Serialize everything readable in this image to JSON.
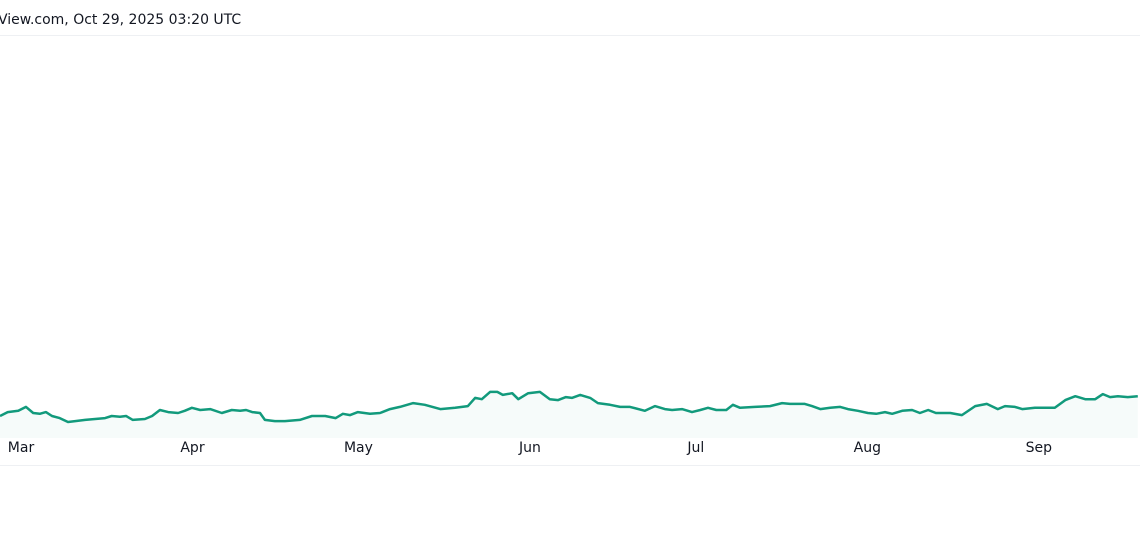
{
  "chart_data": {
    "type": "line",
    "title": "View.com, Oct 29, 2025 03:20 UTC",
    "x": [
      56.2,
      57.6,
      59.5,
      60.9,
      62.2,
      63.4,
      64.5,
      65.6,
      67.0,
      68.5,
      69.8,
      71.6,
      73.4,
      75.2,
      76.4,
      77.9,
      79.0,
      80.2,
      82.4,
      83.7,
      85.1,
      86.6,
      88.4,
      89.6,
      90.9,
      92.4,
      94.2,
      96.3,
      98.1,
      99.6,
      100.7,
      101.8,
      103.2,
      104.1,
      105.9,
      107.7,
      110.4,
      112.6,
      115.0,
      116.9,
      118.2,
      119.5,
      120.9,
      123.1,
      124.9,
      126.7,
      128.5,
      130.9,
      133.0,
      135.8,
      138.5,
      140.8,
      142.1,
      143.3,
      144.8,
      146.1,
      147.1,
      148.8,
      149.9,
      151.7,
      153.8,
      155.6,
      157.1,
      158.5,
      159.6,
      161.1,
      162.9,
      164.3,
      166.5,
      168.3,
      170.1,
      172.8,
      174.6,
      176.4,
      177.7,
      179.5,
      181.3,
      182.8,
      184.2,
      185.7,
      187.5,
      188.7,
      190.0,
      192.7,
      195.4,
      197.6,
      199.0,
      201.7,
      203.0,
      204.5,
      206.3,
      208.1,
      209.5,
      211.3,
      213.1,
      214.6,
      216.2,
      217.5,
      219.3,
      221.1,
      222.5,
      224.0,
      225.4,
      228.0,
      230.1,
      232.5,
      234.6,
      236.6,
      237.9,
      239.7,
      241.0,
      243.3,
      245.1,
      246.9,
      248.8,
      250.6,
      252.4,
      254.2,
      255.6,
      256.9,
      258.3,
      260.1,
      261.9
    ],
    "series": [
      {
        "color": "#129a7c",
        "values": [
          11.4,
          12.3,
          12.6,
          13.5,
          12.1,
          11.9,
          12.3,
          11.4,
          10.9,
          10.0,
          10.2,
          10.5,
          10.7,
          10.9,
          11.4,
          11.2,
          11.4,
          10.5,
          10.7,
          11.4,
          12.8,
          12.3,
          12.1,
          12.6,
          13.3,
          12.8,
          13.0,
          12.1,
          12.8,
          12.6,
          12.8,
          12.3,
          12.1,
          10.5,
          10.2,
          10.2,
          10.5,
          11.4,
          11.4,
          10.9,
          11.9,
          11.6,
          12.3,
          11.9,
          12.1,
          13.0,
          13.5,
          14.4,
          14.0,
          13.0,
          13.3,
          13.7,
          15.6,
          15.3,
          17.0,
          17.0,
          16.3,
          16.7,
          15.3,
          16.7,
          17.0,
          15.3,
          15.1,
          15.8,
          15.6,
          16.3,
          15.6,
          14.4,
          14.0,
          13.5,
          13.5,
          12.6,
          13.7,
          13.0,
          12.8,
          13.0,
          12.3,
          12.8,
          13.3,
          12.8,
          12.8,
          14.0,
          13.3,
          13.5,
          13.7,
          14.4,
          14.2,
          14.2,
          13.7,
          13.0,
          13.3,
          13.5,
          13.0,
          12.6,
          12.1,
          11.9,
          12.3,
          11.9,
          12.6,
          12.8,
          12.1,
          12.8,
          12.1,
          12.1,
          11.6,
          13.7,
          14.2,
          13.0,
          13.7,
          13.5,
          13.0,
          13.3,
          13.3,
          13.3,
          15.1,
          16.0,
          15.3,
          15.3,
          16.5,
          15.8,
          16.0,
          15.8,
          16.0
        ]
      }
    ],
    "xlim": [
      56.2,
      262.3
    ],
    "xticks": [
      {
        "value": 60,
        "label": "Mar"
      },
      {
        "value": 91,
        "label": "Apr"
      },
      {
        "value": 121,
        "label": "May"
      },
      {
        "value": 152,
        "label": "Jun"
      },
      {
        "value": 182,
        "label": "Jul"
      },
      {
        "value": 213,
        "label": "Aug"
      },
      {
        "value": 244,
        "label": "Sep"
      }
    ],
    "ylim": [
      0,
      100
    ]
  }
}
